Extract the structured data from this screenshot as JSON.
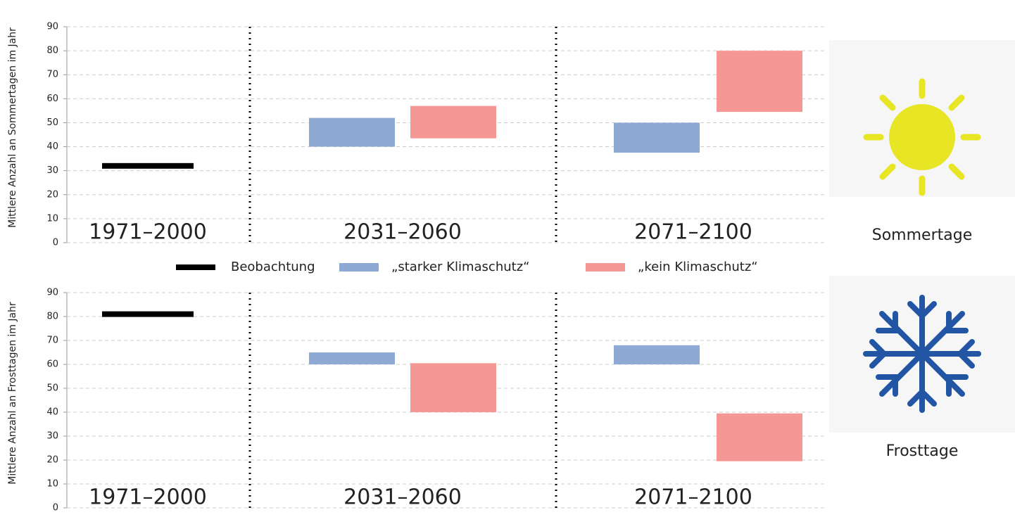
{
  "chart_data": [
    {
      "type": "floating-bar",
      "y_label": "Mittlere Anzahl an Sommertagen im Jahr",
      "icon_label": "Sommertage",
      "categories": [
        "1971–2000",
        "2031–2060",
        "2071–2100"
      ],
      "ylim": [
        0,
        90
      ],
      "yticks": [
        0,
        10,
        20,
        30,
        40,
        50,
        60,
        70,
        80,
        90
      ],
      "grid": true,
      "legend": true,
      "series": [
        {
          "name": "Beobachtung",
          "color": "#000000",
          "values": [
            32,
            null,
            null
          ]
        },
        {
          "name": "„starker Klimaschutz“",
          "color": "#8eaad4",
          "low": [
            null,
            40,
            37.5
          ],
          "high": [
            null,
            52,
            50
          ]
        },
        {
          "name": "„kein Klimaschutz“",
          "color": "#f49795",
          "low": [
            null,
            43.5,
            54.5
          ],
          "high": [
            null,
            57,
            80
          ]
        }
      ]
    },
    {
      "type": "floating-bar",
      "y_label": "Mittlere Anzahl an Frosttagen im Jahr",
      "icon_label": "Frosttage",
      "categories": [
        "1971–2000",
        "2031–2060",
        "2071–2100"
      ],
      "ylim": [
        0,
        90
      ],
      "yticks": [
        0,
        10,
        20,
        30,
        40,
        50,
        60,
        70,
        80,
        90
      ],
      "grid": true,
      "legend": false,
      "series": [
        {
          "color": "#000000",
          "values": [
            81,
            null,
            null
          ]
        },
        {
          "color": "#8eaad4",
          "low": [
            null,
            60,
            60
          ],
          "high": [
            null,
            65,
            68
          ]
        },
        {
          "color": "#f49795",
          "low": [
            null,
            40,
            19.5
          ],
          "high": [
            null,
            60.5,
            39.5
          ]
        }
      ]
    }
  ]
}
